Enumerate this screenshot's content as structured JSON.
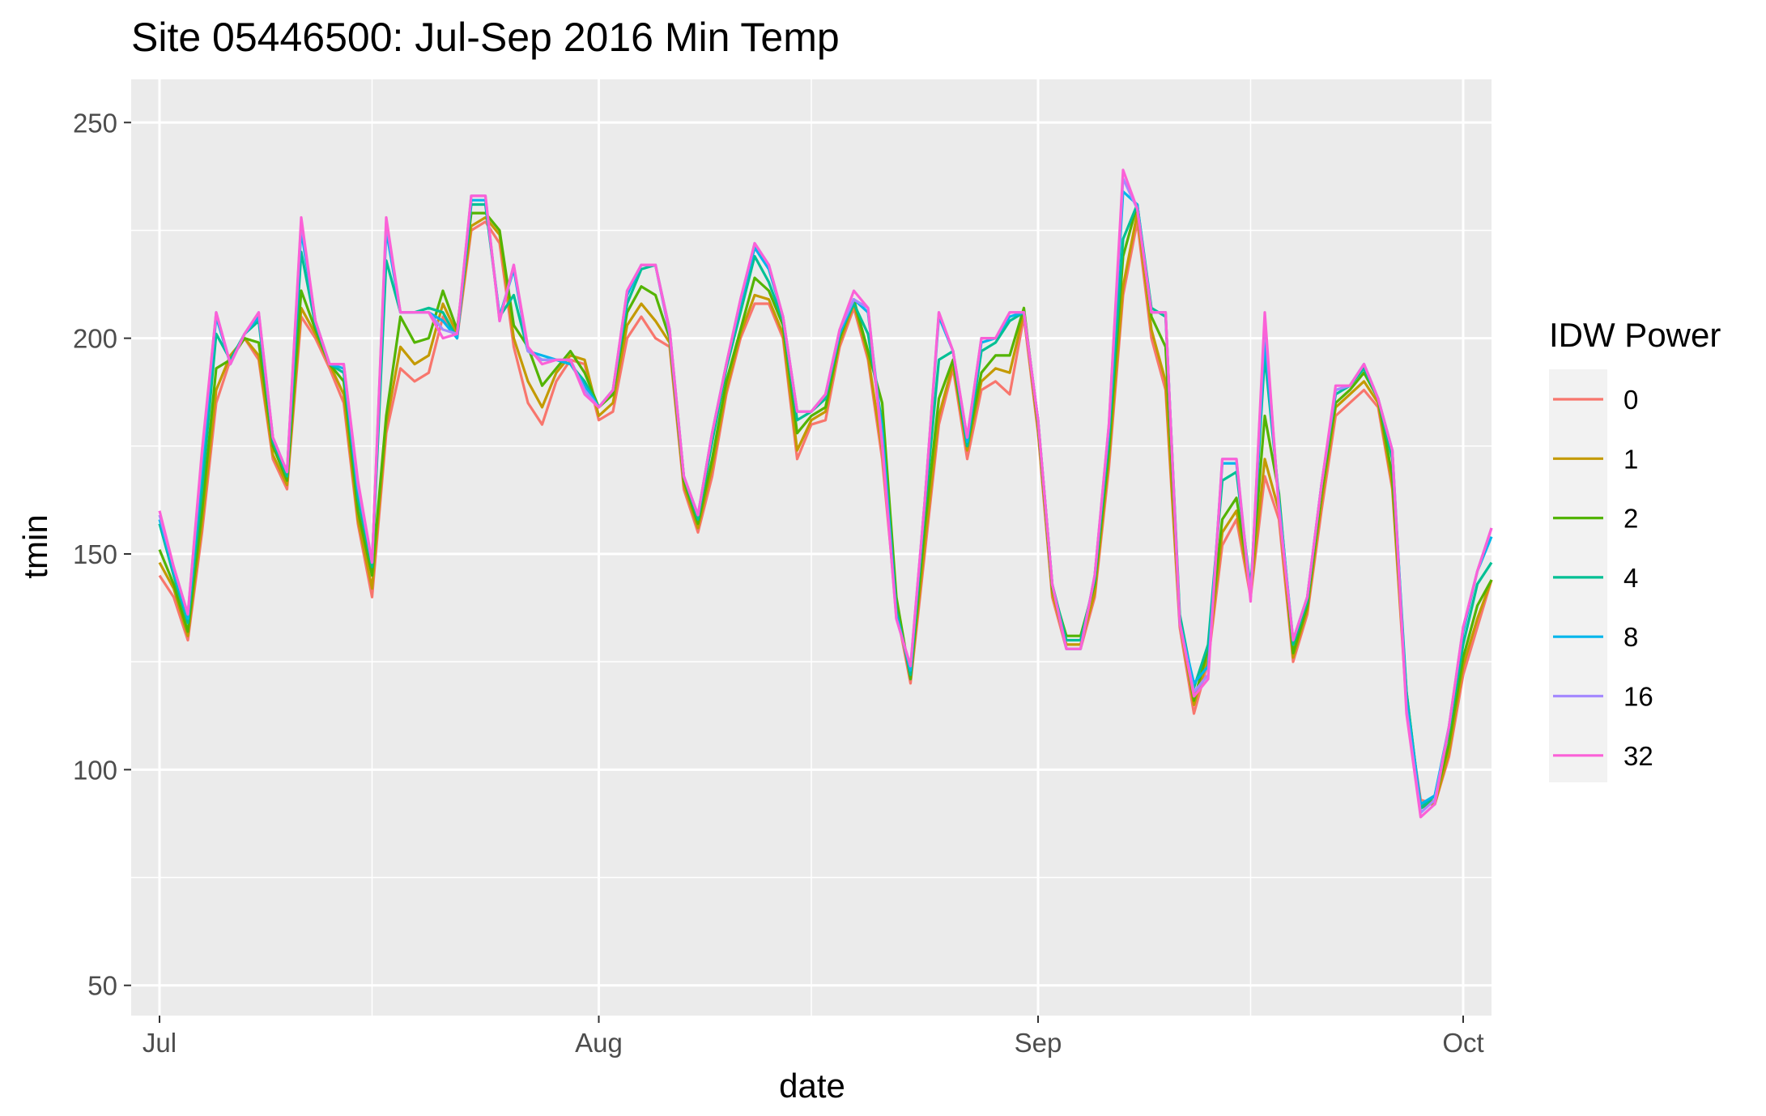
{
  "chart_data": {
    "type": "line",
    "title": "Site 05446500: Jul-Sep 2016 Min Temp",
    "xlabel": "date",
    "ylabel": "tmin",
    "xlim": [
      "2016-06-29",
      "2016-10-03"
    ],
    "ylim": [
      43,
      260
    ],
    "y_ticks": [
      50,
      100,
      150,
      200,
      250
    ],
    "x_ticks": [
      {
        "date": "2016-07-01",
        "label": "Jul"
      },
      {
        "date": "2016-08-01",
        "label": "Aug"
      },
      {
        "date": "2016-09-01",
        "label": "Sep"
      },
      {
        "date": "2016-10-01",
        "label": "Oct"
      }
    ],
    "x_minor_ticks": [
      "2016-07-16",
      "2016-08-16",
      "2016-09-16"
    ],
    "grid": true,
    "legend": {
      "title": "IDW Power",
      "position": "right"
    },
    "x_start": "2016-07-01",
    "x_step_days": 1,
    "series": [
      {
        "name": "0",
        "color": "#F8766D",
        "values": [
          145,
          140,
          130,
          155,
          185,
          195,
          200,
          195,
          172,
          165,
          205,
          200,
          193,
          185,
          157,
          140,
          178,
          193,
          190,
          192,
          205,
          200,
          225,
          227,
          222,
          198,
          185,
          180,
          190,
          195,
          194,
          181,
          183,
          200,
          205,
          200,
          198,
          165,
          155,
          168,
          187,
          200,
          208,
          208,
          200,
          172,
          180,
          181,
          198,
          207,
          195,
          172,
          137,
          120,
          150,
          180,
          193,
          172,
          188,
          190,
          187,
          205,
          178,
          140,
          128,
          128,
          140,
          170,
          210,
          227,
          200,
          188,
          133,
          113,
          125,
          152,
          158,
          140,
          168,
          158,
          125,
          136,
          160,
          182,
          185,
          188,
          184,
          165,
          115,
          93,
          92,
          103,
          122,
          133,
          144
        ]
      },
      {
        "name": "1",
        "color": "#C49A00",
        "values": [
          148,
          142,
          131,
          157,
          188,
          196,
          200,
          196,
          173,
          166,
          207,
          201,
          194,
          187,
          158,
          142,
          180,
          198,
          194,
          196,
          208,
          201,
          226,
          228,
          224,
          200,
          190,
          184,
          192,
          196,
          195,
          182,
          185,
          203,
          208,
          204,
          199,
          166,
          156,
          170,
          188,
          201,
          210,
          209,
          201,
          174,
          181,
          183,
          199,
          208,
          196,
          174,
          138,
          121,
          152,
          182,
          194,
          174,
          190,
          193,
          192,
          206,
          179,
          141,
          129,
          129,
          141,
          172,
          212,
          229,
          202,
          190,
          134,
          115,
          126,
          155,
          160,
          141,
          172,
          160,
          126,
          137,
          162,
          184,
          187,
          190,
          185,
          166,
          116,
          92,
          92,
          104,
          124,
          135,
          144
        ]
      },
      {
        "name": "2",
        "color": "#53B400",
        "values": [
          151,
          143,
          132,
          160,
          193,
          195,
          200,
          199,
          175,
          167,
          211,
          202,
          194,
          190,
          160,
          145,
          182,
          205,
          199,
          200,
          211,
          202,
          229,
          229,
          225,
          203,
          198,
          189,
          193,
          197,
          192,
          184,
          187,
          206,
          212,
          210,
          200,
          167,
          157,
          172,
          190,
          202,
          214,
          211,
          203,
          178,
          182,
          184,
          200,
          209,
          197,
          185,
          140,
          121,
          156,
          186,
          195,
          175,
          192,
          196,
          196,
          207,
          180,
          142,
          131,
          131,
          143,
          174,
          219,
          231,
          205,
          198,
          135,
          116,
          128,
          158,
          163,
          142,
          182,
          164,
          127,
          138,
          164,
          185,
          188,
          192,
          186,
          168,
          118,
          91,
          93,
          106,
          126,
          138,
          144
        ]
      },
      {
        "name": "4",
        "color": "#00C094",
        "values": [
          157,
          145,
          134,
          165,
          201,
          195,
          201,
          204,
          176,
          168,
          220,
          203,
          194,
          192,
          163,
          147,
          218,
          206,
          206,
          207,
          206,
          200,
          231,
          231,
          205,
          210,
          197,
          195,
          195,
          194,
          190,
          184,
          188,
          208,
          216,
          217,
          201,
          168,
          158,
          176,
          193,
          206,
          219,
          213,
          204,
          181,
          183,
          186,
          201,
          208,
          201,
          180,
          137,
          122,
          160,
          195,
          197,
          175,
          197,
          199,
          204,
          206,
          181,
          143,
          130,
          130,
          144,
          177,
          223,
          231,
          207,
          205,
          136,
          119,
          129,
          167,
          169,
          142,
          196,
          163,
          129,
          139,
          166,
          187,
          189,
          193,
          186,
          172,
          118,
          91,
          94,
          109,
          129,
          143,
          148
        ]
      },
      {
        "name": "8",
        "color": "#00B6EB",
        "values": [
          158,
          146,
          135,
          170,
          205,
          194,
          201,
          205,
          177,
          169,
          225,
          204,
          194,
          193,
          165,
          148,
          225,
          206,
          206,
          206,
          204,
          200,
          232,
          232,
          205,
          216,
          197,
          196,
          195,
          194,
          189,
          184,
          188,
          210,
          217,
          217,
          202,
          168,
          159,
          178,
          194,
          208,
          221,
          216,
          205,
          183,
          183,
          187,
          201,
          209,
          206,
          178,
          136,
          123,
          162,
          205,
          197,
          176,
          199,
          200,
          205,
          206,
          181,
          143,
          128,
          128,
          145,
          179,
          234,
          231,
          206,
          206,
          134,
          120,
          124,
          171,
          171,
          140,
          200,
          162,
          130,
          140,
          166,
          188,
          189,
          194,
          186,
          174,
          116,
          92,
          94,
          110,
          132,
          146,
          154
        ]
      },
      {
        "name": "16",
        "color": "#A58AFF",
        "values": [
          159,
          147,
          136,
          173,
          206,
          194,
          201,
          206,
          177,
          169,
          227,
          204,
          194,
          194,
          166,
          148,
          227,
          206,
          206,
          206,
          202,
          201,
          233,
          233,
          204,
          217,
          197,
          195,
          195,
          195,
          188,
          184,
          188,
          211,
          217,
          217,
          201,
          168,
          159,
          178,
          194,
          209,
          222,
          217,
          205,
          183,
          183,
          187,
          202,
          209,
          207,
          176,
          135,
          124,
          162,
          206,
          197,
          177,
          200,
          200,
          206,
          206,
          181,
          143,
          128,
          128,
          145,
          180,
          237,
          230,
          206,
          206,
          134,
          118,
          122,
          172,
          172,
          140,
          204,
          161,
          130,
          140,
          166,
          188,
          189,
          194,
          186,
          174,
          114,
          90,
          93,
          110,
          133,
          146,
          156
        ]
      },
      {
        "name": "32",
        "color": "#FB61D7",
        "values": [
          160,
          147,
          136,
          174,
          206,
          194,
          201,
          206,
          177,
          169,
          228,
          204,
          194,
          194,
          167,
          148,
          228,
          206,
          206,
          206,
          200,
          201,
          233,
          233,
          204,
          217,
          198,
          194,
          195,
          195,
          187,
          184,
          188,
          211,
          217,
          217,
          202,
          168,
          159,
          178,
          194,
          209,
          222,
          217,
          205,
          183,
          183,
          187,
          202,
          211,
          207,
          175,
          135,
          124,
          162,
          206,
          197,
          177,
          200,
          200,
          206,
          206,
          181,
          143,
          128,
          128,
          145,
          180,
          239,
          230,
          206,
          206,
          134,
          117,
          121,
          172,
          172,
          139,
          206,
          160,
          130,
          140,
          166,
          189,
          189,
          194,
          186,
          174,
          113,
          89,
          92,
          110,
          133,
          146,
          156
        ]
      }
    ]
  }
}
